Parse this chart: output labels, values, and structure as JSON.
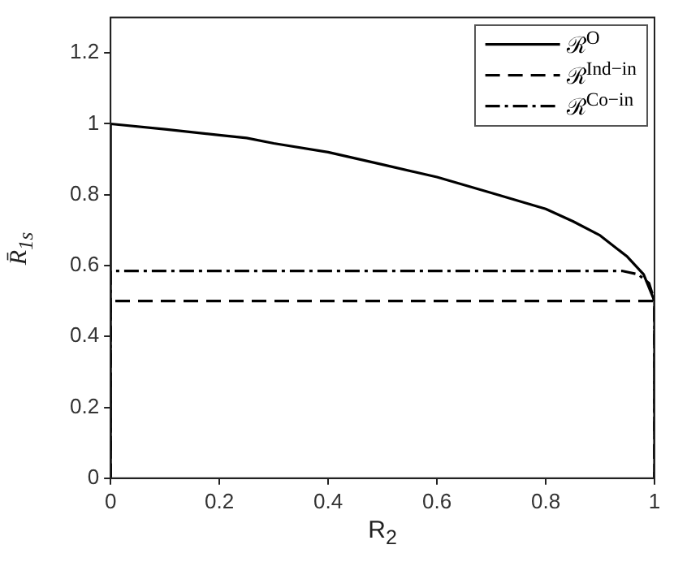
{
  "chart_data": {
    "type": "line",
    "xlabel": "R$_{2}$",
    "ylabel": "R̄$_{1s}$",
    "xlim": [
      0,
      1
    ],
    "xticks": [
      0,
      0.2,
      0.4,
      0.6,
      0.8,
      1
    ],
    "ylim": [
      0,
      1.3
    ],
    "yticks": [
      0,
      0.2,
      0.4,
      0.6,
      0.8,
      1,
      1.2
    ],
    "grid": false,
    "legend": "top right",
    "marker": "none",
    "series": [
      {
        "name": "ℛ$^{O}$",
        "color": "#000000",
        "line_style": "solid",
        "x": [
          0,
          0,
          0.1,
          0.2,
          0.25,
          0.3,
          0.4,
          0.5,
          0.6,
          0.7,
          0.8,
          0.85,
          0.9,
          0.95,
          0.98,
          1,
          1
        ],
        "values": [
          0,
          1,
          0.985,
          0.968,
          0.96,
          0.945,
          0.92,
          0.885,
          0.85,
          0.805,
          0.76,
          0.725,
          0.685,
          0.625,
          0.575,
          0.5,
          0
        ]
      },
      {
        "name": "ℛ$^{Ind−in}$",
        "color": "#000000",
        "line_style": "dashed",
        "x": [
          0,
          0,
          1,
          1
        ],
        "values": [
          0,
          0.5,
          0.5,
          0
        ]
      },
      {
        "name": "ℛ$^{Co−in}$",
        "color": "#000000",
        "line_style": "dashdot",
        "x": [
          0,
          0,
          0.94,
          0.97,
          0.99,
          1,
          1
        ],
        "values": [
          0,
          0.585,
          0.585,
          0.575,
          0.55,
          0.5,
          0
        ]
      }
    ]
  }
}
